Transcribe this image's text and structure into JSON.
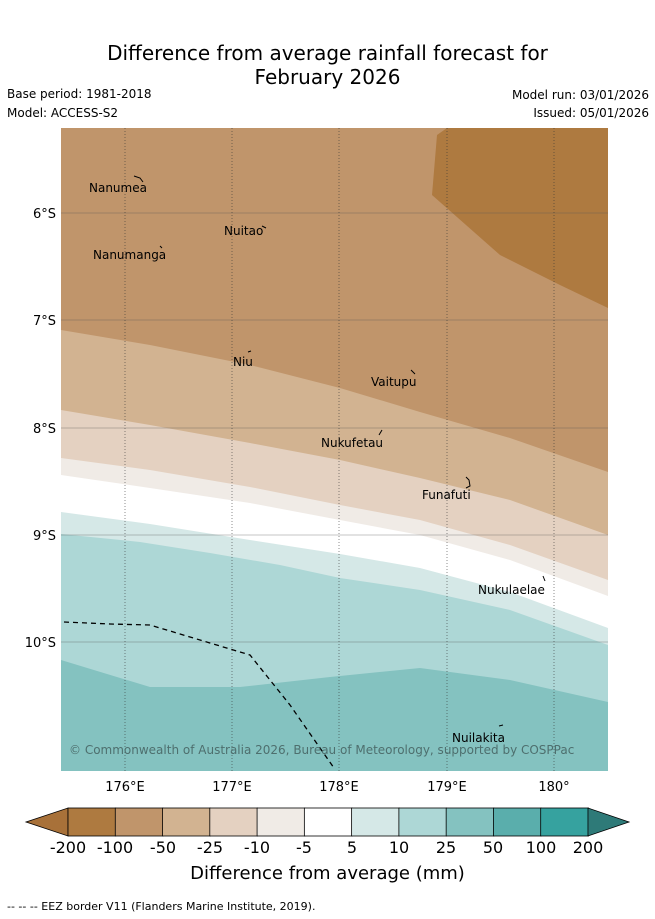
{
  "header": {
    "title_line1": "Difference from average rainfall forecast for",
    "title_line2": "February 2026",
    "base_period": "Base period: 1981-2018",
    "model": "Model: ACCESS-S2",
    "model_run": "Model run: 03/01/2026",
    "issued": "Issued: 05/01/2026"
  },
  "map": {
    "lat_labels": [
      "6°S",
      "7°S",
      "8°S",
      "9°S",
      "10°S"
    ],
    "lon_labels": [
      "176°E",
      "177°E",
      "178°E",
      "179°E",
      "180°"
    ],
    "islands": [
      "Nanumea",
      "Nuitao",
      "Nanumanga",
      "Niu",
      "Vaitupu",
      "Nukufetau",
      "Funafuti",
      "Nukulaelae",
      "Nuilakita"
    ],
    "copyright": "© Commonwealth of Australia 2026, Bureau of Meteorology, supported by COSPPac"
  },
  "colorbar": {
    "title": "Difference from average (mm)",
    "ticks": [
      "-200",
      "-100",
      "-50",
      "-25",
      "-10",
      "-5",
      "5",
      "10",
      "25",
      "50",
      "100",
      "200"
    ],
    "colors": [
      "#a87139",
      "#ae7a40",
      "#c0956b",
      "#d2b391",
      "#e4d1c1",
      "#f0ebe6",
      "#ffffff",
      "#d5e8e7",
      "#add7d6",
      "#84c2c0",
      "#5aaeac",
      "#36a29f",
      "#2e7a78"
    ]
  },
  "footnote": "--  --  -- EEZ border V11 (Flanders Marine Institute, 2019)."
}
